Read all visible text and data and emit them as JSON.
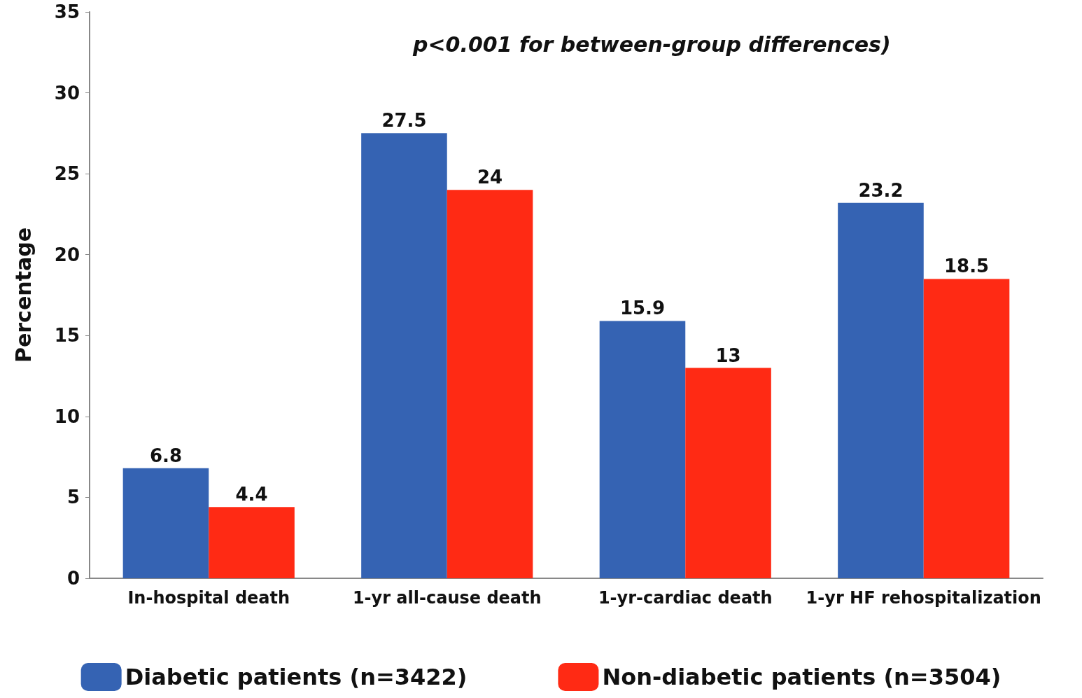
{
  "chart_data": {
    "type": "bar",
    "ylabel": "Percentage",
    "categories": [
      "In-hospital death",
      "1-yr all-cause death",
      "1-yr-cardiac death",
      "1-yr HF rehospitalization"
    ],
    "series": [
      {
        "name": "Diabetic patients (n=3422)",
        "color": "#3563b3",
        "values": [
          6.8,
          27.5,
          15.9,
          23.2
        ]
      },
      {
        "name": "Non-diabetic patients (n=3504)",
        "color": "#ff2a14",
        "values": [
          4.4,
          24,
          13,
          18.5
        ]
      }
    ],
    "ylim": [
      0,
      35
    ],
    "yticks": [
      0,
      5,
      10,
      15,
      20,
      25,
      30,
      35
    ],
    "grid": false,
    "legend": "bottom",
    "data_labels": true,
    "annotations": [
      "p<0.001 for between-group differences)"
    ]
  }
}
